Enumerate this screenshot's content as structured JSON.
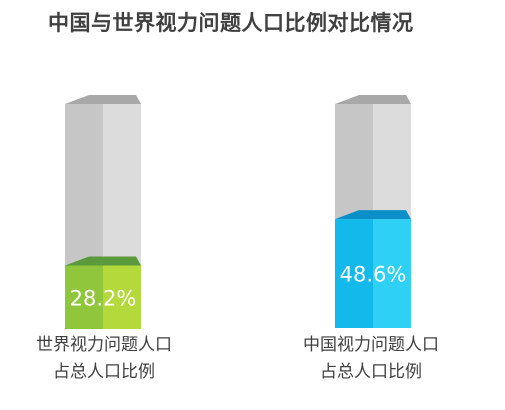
{
  "title": "中国与世界视力问题人口比例对比情况",
  "chart_data": {
    "type": "bar",
    "style": "3d-cylinder-percentage",
    "categories": [
      [
        "世界视力问题人口",
        "占总人口比例"
      ],
      [
        "中国视力问题人口",
        "占总人口比例"
      ]
    ],
    "values": [
      28.2,
      48.6
    ],
    "value_labels": [
      "28.2%",
      "48.6%"
    ],
    "ylim": [
      0,
      100
    ],
    "colors": {
      "series": [
        {
          "front": "#8fc63c",
          "side": "#b3d93a",
          "top": "#5a9a3c"
        },
        {
          "front": "#12b9ea",
          "side": "#2ed0f5",
          "top": "#0a8fc9"
        }
      ],
      "empty_front": "#c6c6c6",
      "empty_side": "#dcdcdc",
      "empty_top": "#a8a8a8"
    }
  }
}
